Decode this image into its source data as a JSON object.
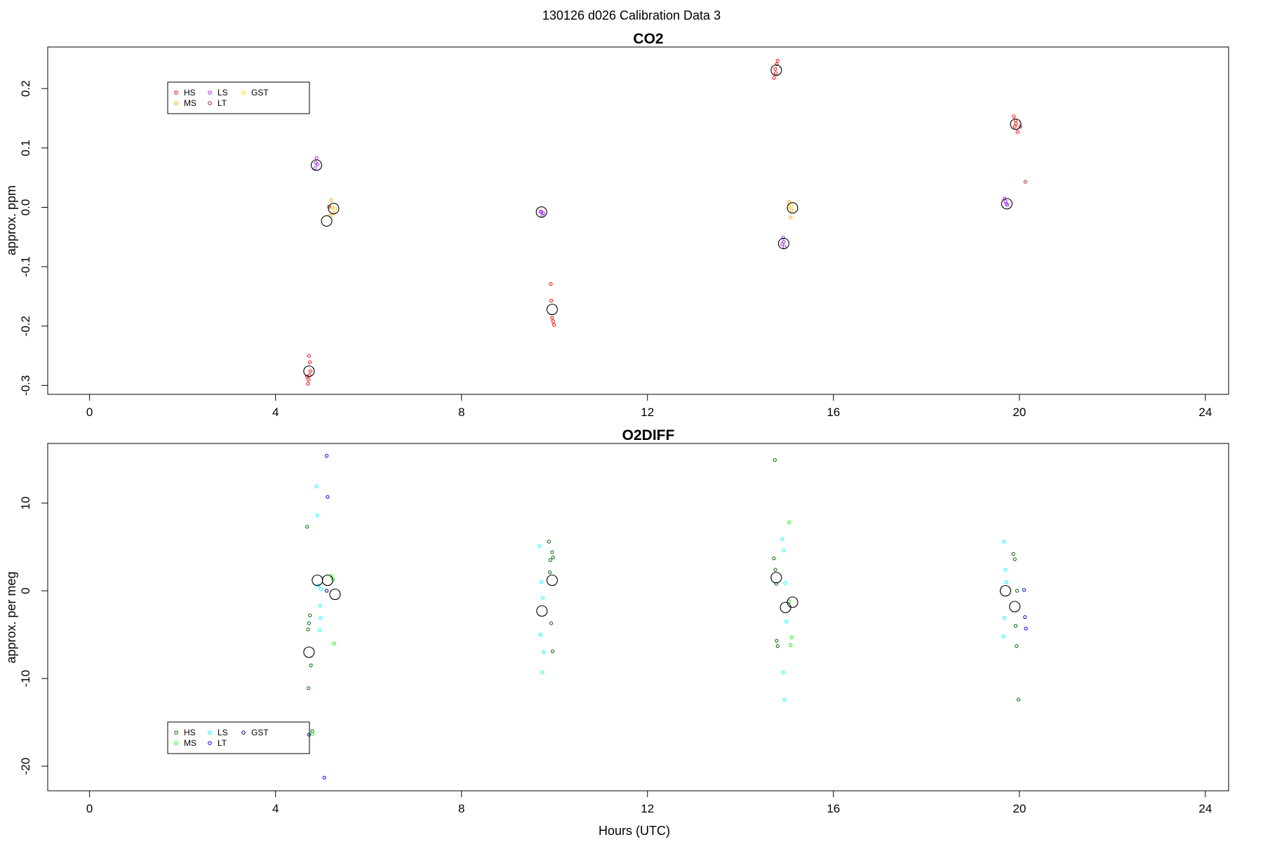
{
  "figure": {
    "super_title": "130126   d026   Calibration Data 3"
  },
  "chart_data": [
    {
      "type": "scatter",
      "title": "CO2",
      "xlabel": "",
      "ylabel": "approx. ppm",
      "xlim": [
        -0.9,
        24.5
      ],
      "ylim": [
        -0.315,
        0.27
      ],
      "xticks": [
        0,
        4,
        8,
        12,
        16,
        20,
        24
      ],
      "yticks": [
        -0.3,
        -0.2,
        -0.1,
        0.0,
        0.1,
        0.2
      ],
      "ytick_labels": [
        "-0.3",
        "-0.2",
        "-0.1",
        "0.0",
        "0.1",
        "0.2"
      ],
      "legend": {
        "placement": "top-left",
        "entries": [
          {
            "label": "HS",
            "color": "#ff0000"
          },
          {
            "label": "MS",
            "color": "#ffa500"
          },
          {
            "label": "LS",
            "color": "#a020f0"
          },
          {
            "label": "LT",
            "color": "#b22222"
          },
          {
            "label": "GST",
            "color": "#ffd700"
          }
        ]
      },
      "series": [
        {
          "name": "HS",
          "color": "#ff0000",
          "points": [
            [
              4.71,
              -0.29
            ],
            [
              4.73,
              -0.283
            ],
            [
              4.74,
              -0.261
            ],
            [
              4.72,
              -0.25
            ],
            [
              4.7,
              -0.297
            ],
            [
              4.75,
              -0.276
            ],
            [
              4.68,
              -0.285
            ],
            [
              9.92,
              -0.129
            ],
            [
              9.93,
              -0.157
            ],
            [
              9.95,
              -0.186
            ],
            [
              9.97,
              -0.192
            ],
            [
              9.99,
              -0.198
            ],
            [
              14.72,
              0.218
            ],
            [
              14.75,
              0.233
            ],
            [
              14.78,
              0.241
            ],
            [
              14.8,
              0.247
            ],
            [
              14.76,
              0.226
            ],
            [
              19.88,
              0.153
            ],
            [
              19.9,
              0.136
            ],
            [
              19.93,
              0.141
            ],
            [
              19.96,
              0.127
            ],
            [
              19.92,
              0.146
            ]
          ]
        },
        {
          "name": "MS",
          "color": "#ffa500",
          "points": [
            [
              5.18,
              -0.014
            ],
            [
              5.2,
              0.012
            ],
            [
              5.22,
              0.0
            ],
            [
              5.25,
              -0.01
            ],
            [
              15.05,
              0.009
            ],
            [
              15.08,
              -0.017
            ],
            [
              15.1,
              -0.005
            ],
            [
              15.04,
              0.001
            ]
          ]
        },
        {
          "name": "LS",
          "color": "#a020f0",
          "points": [
            [
              4.85,
              0.066
            ],
            [
              4.88,
              0.083
            ],
            [
              4.9,
              0.072
            ],
            [
              4.87,
              0.075
            ],
            [
              9.72,
              -0.008
            ],
            [
              9.74,
              -0.014
            ],
            [
              9.76,
              -0.01
            ],
            [
              9.7,
              -0.007
            ],
            [
              14.92,
              -0.051
            ],
            [
              14.9,
              -0.062
            ],
            [
              14.95,
              -0.067
            ],
            [
              14.93,
              -0.058
            ],
            [
              19.7,
              0.01
            ],
            [
              19.72,
              0.006
            ],
            [
              19.74,
              0.004
            ],
            [
              19.68,
              0.015
            ]
          ]
        },
        {
          "name": "LT",
          "color": "#b22222",
          "points": [
            [
              5.15,
              0.001
            ],
            [
              20.13,
              0.043
            ],
            [
              20.02,
              0.136
            ]
          ]
        },
        {
          "name": "GST",
          "color": "#ffd700",
          "points": [
            [
              5.28,
              -0.003
            ],
            [
              15.1,
              0.002
            ]
          ]
        },
        {
          "name": "",
          "color": "#000000",
          "role": "mean",
          "points": [
            [
              4.72,
              -0.276
            ],
            [
              4.88,
              0.071
            ],
            [
              5.1,
              -0.023
            ],
            [
              5.25,
              -0.002
            ],
            [
              9.72,
              -0.008
            ],
            [
              9.95,
              -0.172
            ],
            [
              14.77,
              0.231
            ],
            [
              14.93,
              -0.061
            ],
            [
              15.12,
              -0.001
            ],
            [
              19.73,
              0.006
            ],
            [
              19.92,
              0.14
            ]
          ]
        }
      ]
    },
    {
      "type": "scatter",
      "title": "O2DIFF",
      "xlabel": "Hours (UTC)",
      "ylabel": "approx. per meg",
      "xlim": [
        -0.9,
        24.5
      ],
      "ylim": [
        -22.8,
        16.8
      ],
      "xticks": [
        0,
        4,
        8,
        12,
        16,
        20,
        24
      ],
      "yticks": [
        -20,
        -10,
        0,
        10
      ],
      "ytick_labels": [
        "-20",
        "-10",
        "0",
        "10"
      ],
      "legend": {
        "placement": "bottom-left",
        "entries": [
          {
            "label": "HS",
            "color": "#006400"
          },
          {
            "label": "MS",
            "color": "#00ff00"
          },
          {
            "label": "LS",
            "color": "#00ffff"
          },
          {
            "label": "LT",
            "color": "#0000ff"
          },
          {
            "label": "GST",
            "color": "#00008b"
          }
        ]
      },
      "series": [
        {
          "name": "HS",
          "color": "#006400",
          "points": [
            [
              4.68,
              7.3
            ],
            [
              4.7,
              -4.4
            ],
            [
              4.72,
              -3.7
            ],
            [
              4.74,
              -2.8
            ],
            [
              4.76,
              -8.5
            ],
            [
              4.71,
              -11.1
            ],
            [
              4.79,
              -16.0
            ],
            [
              9.88,
              5.6
            ],
            [
              9.91,
              3.5
            ],
            [
              9.95,
              4.4
            ],
            [
              9.97,
              3.8
            ],
            [
              9.93,
              -3.7
            ],
            [
              9.96,
              -6.9
            ],
            [
              9.9,
              2.1
            ],
            [
              14.72,
              3.7
            ],
            [
              14.75,
              2.4
            ],
            [
              14.77,
              0.8
            ],
            [
              14.78,
              -5.7
            ],
            [
              14.8,
              -6.3
            ],
            [
              14.74,
              14.9
            ],
            [
              19.87,
              4.2
            ],
            [
              19.9,
              3.6
            ],
            [
              19.92,
              -4.0
            ],
            [
              19.94,
              -6.3
            ],
            [
              19.98,
              -12.4
            ],
            [
              19.95,
              0.0
            ]
          ]
        },
        {
          "name": "MS",
          "color": "#00ff00",
          "points": [
            [
              5.2,
              1.7
            ],
            [
              5.24,
              1.3
            ],
            [
              5.26,
              -6.0
            ],
            [
              4.8,
              -16.3
            ],
            [
              15.05,
              7.8
            ],
            [
              15.08,
              -6.2
            ],
            [
              15.1,
              -5.3
            ],
            [
              15.04,
              -1.2
            ]
          ]
        },
        {
          "name": "LS",
          "color": "#00ffff",
          "points": [
            [
              4.88,
              11.9
            ],
            [
              4.9,
              8.6
            ],
            [
              4.92,
              0.6
            ],
            [
              4.96,
              -1.7
            ],
            [
              4.97,
              -3.1
            ],
            [
              4.95,
              -4.5
            ],
            [
              4.98,
              0.2
            ],
            [
              9.68,
              5.1
            ],
            [
              9.72,
              1.0
            ],
            [
              9.75,
              -0.8
            ],
            [
              9.77,
              -7.0
            ],
            [
              9.74,
              -9.3
            ],
            [
              9.7,
              -5.0
            ],
            [
              14.9,
              5.9
            ],
            [
              14.93,
              4.6
            ],
            [
              14.96,
              0.9
            ],
            [
              14.99,
              -3.5
            ],
            [
              14.92,
              -9.3
            ],
            [
              14.95,
              -12.4
            ],
            [
              19.67,
              5.6
            ],
            [
              19.7,
              2.4
            ],
            [
              19.72,
              1.0
            ],
            [
              19.68,
              -3.1
            ],
            [
              19.66,
              -5.2
            ]
          ]
        },
        {
          "name": "LT",
          "color": "#0000ff",
          "points": [
            [
              5.1,
              15.4
            ],
            [
              5.12,
              10.7
            ],
            [
              5.05,
              -21.3
            ],
            [
              20.1,
              0.1
            ],
            [
              20.12,
              -3.0
            ],
            [
              20.14,
              -4.3
            ]
          ]
        },
        {
          "name": "GST",
          "color": "#00008b",
          "points": [
            [
              5.1,
              0.0
            ],
            [
              4.72,
              -16.4
            ]
          ]
        },
        {
          "name": "",
          "color": "#000000",
          "role": "mean",
          "points": [
            [
              4.72,
              -7.0
            ],
            [
              4.9,
              1.2
            ],
            [
              5.12,
              1.2
            ],
            [
              5.28,
              -0.4
            ],
            [
              9.73,
              -2.3
            ],
            [
              9.95,
              1.2
            ],
            [
              14.77,
              1.5
            ],
            [
              14.97,
              -1.9
            ],
            [
              15.12,
              -1.3
            ],
            [
              19.7,
              0.0
            ],
            [
              19.9,
              -1.8
            ]
          ]
        }
      ]
    }
  ]
}
